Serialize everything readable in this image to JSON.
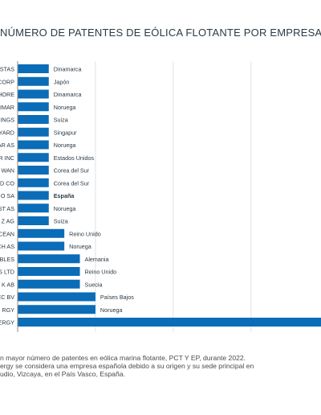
{
  "title": "NÚMERO DE PATENTES DE EÓLICA FLOTANTE POR EMPRESA",
  "notes": [
    "n mayor número de patentes en eólica marina flotante, PCT Y EP, durante 2022.",
    "ergy se considera una empresa española debido a su origen y su sede principal en",
    "udio, Vizcaya, en el País Vasco, España."
  ],
  "colors": {
    "bar": "#0b6cb8",
    "grid": "#dde3e8",
    "axis": "#888888"
  },
  "chart_data": {
    "type": "bar",
    "orientation": "horizontal",
    "categories": [
      "STAS",
      "CORP",
      "HORE",
      "IMAR",
      "RINGS",
      "YARD",
      "AR AS",
      "R INC",
      "WAN",
      "D CO",
      "O SA",
      "ST AS",
      "Z AG",
      "CEAN",
      "CH AS",
      "ABLES",
      "S LTD",
      "K AB",
      "EC BV",
      "RGY",
      "ERGY"
    ],
    "values": [
      2,
      2,
      2,
      2,
      2,
      2,
      2,
      2,
      2,
      2,
      2,
      2,
      2,
      3,
      3,
      4,
      4,
      4,
      5,
      5,
      20
    ],
    "bar_labels": [
      "Dinamarca",
      "Japón",
      "Dinamarca",
      "Noruega",
      "Suiza",
      "Singapur",
      "Noruega",
      "Estados Unidos",
      "Corea del Sur",
      "Corea del Sur",
      "España",
      "Noruega",
      "Suiza",
      "Reino Unido",
      "Noruega",
      "Alemania",
      "Reino Unido",
      "Suecia",
      "Países Bajos",
      "Noruega",
      ""
    ],
    "highlight_label": "España",
    "xticks": [
      0,
      5,
      10,
      15
    ],
    "xlim": [
      0,
      19.5
    ],
    "xlabel": "",
    "ylabel": "",
    "grid": true,
    "legend": "none"
  }
}
